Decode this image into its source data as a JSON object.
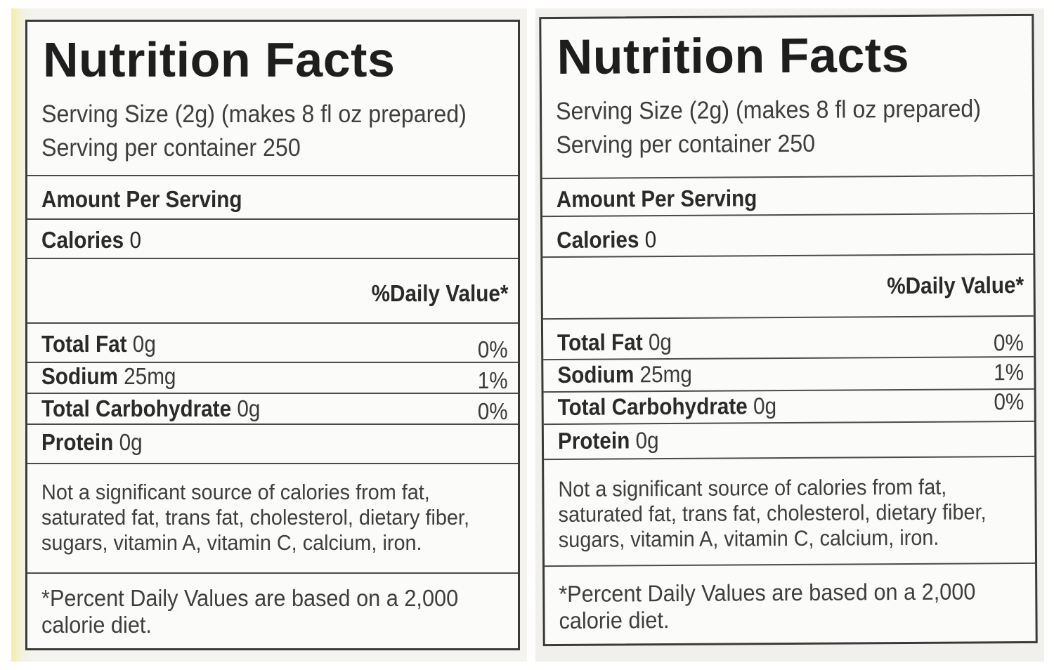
{
  "labels": [
    {
      "title": "Nutrition Facts",
      "serving_size": "Serving Size (2g) (makes 8 fl oz prepared)",
      "servings_per_container": "Serving per container 250",
      "amount_per_serving": "Amount Per Serving",
      "calories_label": "Calories",
      "calories_value": "0",
      "daily_value_header": "%Daily Value*",
      "nutrients": [
        {
          "name": "Total Fat",
          "amount": "0g",
          "dv": "0%"
        },
        {
          "name": "Sodium",
          "amount": "25mg",
          "dv": "1%"
        },
        {
          "name": "Total Carbohydrate",
          "amount": "0g",
          "dv": "0%"
        },
        {
          "name": "Protein",
          "amount": "0g",
          "dv": ""
        }
      ],
      "note_lines": [
        "Not a significant source of calories from fat,",
        "saturated fat, trans fat, cholesterol, dietary fiber,",
        "sugars, vitamin A, vitamin C, calcium, iron."
      ],
      "footnote_lines": [
        "*Percent Daily Values are based on a 2,000",
        "calorie diet."
      ]
    },
    {
      "title": "Nutrition Facts",
      "serving_size": "Serving Size (2g) (makes 8 fl oz prepared)",
      "servings_per_container": "Serving per container 250",
      "amount_per_serving": "Amount Per Serving",
      "calories_label": "Calories",
      "calories_value": "0",
      "daily_value_header": "%Daily Value*",
      "nutrients": [
        {
          "name": "Total Fat",
          "amount": "0g",
          "dv": "0%"
        },
        {
          "name": "Sodium",
          "amount": "25mg",
          "dv": "1%"
        },
        {
          "name": "Total Carbohydrate",
          "amount": "0g",
          "dv": "0%"
        },
        {
          "name": "Protein",
          "amount": "0g",
          "dv": ""
        }
      ],
      "note_lines": [
        "Not a significant source of calories from fat,",
        "saturated fat, trans fat, cholesterol, dietary fiber,",
        "sugars, vitamin A, vitamin C, calcium, iron."
      ],
      "footnote_lines": [
        "*Percent Daily Values are based on a 2,000",
        "calorie diet."
      ]
    }
  ]
}
